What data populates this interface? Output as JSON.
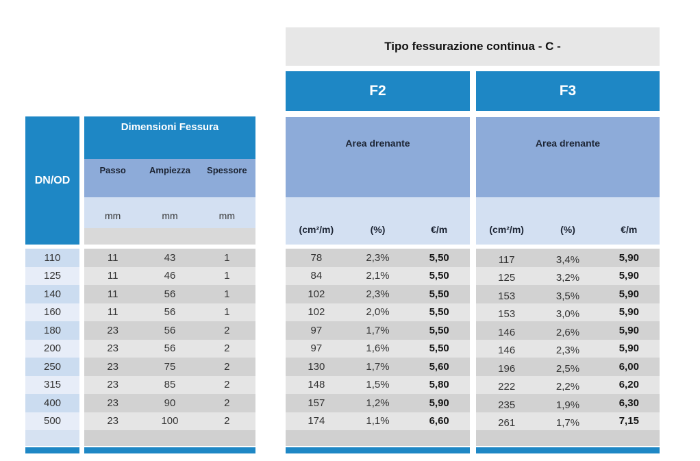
{
  "title": "Tipo fessurazione continua - C -",
  "colors": {
    "blue": "#1e87c5",
    "medium_blue": "#8dabd9",
    "light_blue": "#d3e0f2",
    "row_blue_a": "#cbdcf0",
    "row_blue_b": "#e7edf8",
    "row_gray_a": "#d2d2d2",
    "row_gray_b": "#e5e5e5",
    "strip_gray": "#d9d9d9",
    "title_bg": "#e7e7e7",
    "empty_blue": "#d6e2f2",
    "empty_gray": "#d0d0d0"
  },
  "left_table": {
    "dnod_header": "DN/OD",
    "group_header": "Dimensioni Fessura",
    "columns": [
      "Passo",
      "Ampiezza",
      "Spessore"
    ],
    "units": [
      "mm",
      "mm",
      "mm"
    ]
  },
  "f2": {
    "header": "F2",
    "area_label": "Area drenante",
    "units": [
      "(cm²/m)",
      "(%)",
      "€/m"
    ]
  },
  "f3": {
    "header": "F3",
    "area_label": "Area drenante",
    "units": [
      "(cm²/m)",
      "(%)",
      "€/m"
    ]
  },
  "rows": [
    {
      "dn": "110",
      "passo": "11",
      "ampiezza": "43",
      "spessore": "1",
      "f2": [
        "78",
        "2,3%",
        "5,50"
      ],
      "f3": [
        "117",
        "3,4%",
        "5,90"
      ]
    },
    {
      "dn": "125",
      "passo": "11",
      "ampiezza": "46",
      "spessore": "1",
      "f2": [
        "84",
        "2,1%",
        "5,50"
      ],
      "f3": [
        "125",
        "3,2%",
        "5,90"
      ]
    },
    {
      "dn": "140",
      "passo": "11",
      "ampiezza": "56",
      "spessore": "1",
      "f2": [
        "102",
        "2,3%",
        "5,50"
      ],
      "f3": [
        "153",
        "3,5%",
        "5,90"
      ]
    },
    {
      "dn": "160",
      "passo": "11",
      "ampiezza": "56",
      "spessore": "1",
      "f2": [
        "102",
        "2,0%",
        "5,50"
      ],
      "f3": [
        "153",
        "3,0%",
        "5,90"
      ]
    },
    {
      "dn": "180",
      "passo": "23",
      "ampiezza": "56",
      "spessore": "2",
      "f2": [
        "97",
        "1,7%",
        "5,50"
      ],
      "f3": [
        "146",
        "2,6%",
        "5,90"
      ]
    },
    {
      "dn": "200",
      "passo": "23",
      "ampiezza": "56",
      "spessore": "2",
      "f2": [
        "97",
        "1,6%",
        "5,50"
      ],
      "f3": [
        "146",
        "2,3%",
        "5,90"
      ]
    },
    {
      "dn": "250",
      "passo": "23",
      "ampiezza": "75",
      "spessore": "2",
      "f2": [
        "130",
        "1,7%",
        "5,60"
      ],
      "f3": [
        "196",
        "2,5%",
        "6,00"
      ]
    },
    {
      "dn": "315",
      "passo": "23",
      "ampiezza": "85",
      "spessore": "2",
      "f2": [
        "148",
        "1,5%",
        "5,80"
      ],
      "f3": [
        "222",
        "2,2%",
        "6,20"
      ]
    },
    {
      "dn": "400",
      "passo": "23",
      "ampiezza": "90",
      "spessore": "2",
      "f2": [
        "157",
        "1,2%",
        "5,90"
      ],
      "f3": [
        "235",
        "1,9%",
        "6,30"
      ]
    },
    {
      "dn": "500",
      "passo": "23",
      "ampiezza": "100",
      "spessore": "2",
      "f2": [
        "174",
        "1,1%",
        "6,60"
      ],
      "f3": [
        "261",
        "1,7%",
        "7,15"
      ]
    }
  ]
}
